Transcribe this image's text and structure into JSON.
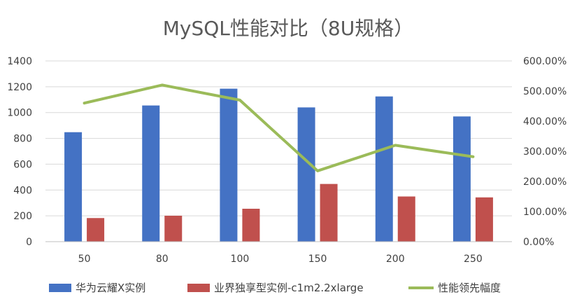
{
  "chart_data": {
    "type": "bar",
    "title": "MySQL性能对比（8U规格）",
    "categories": [
      "50",
      "80",
      "100",
      "150",
      "200",
      "250"
    ],
    "series": [
      {
        "name": "华为云耀X实例",
        "type": "bar",
        "axis": "left",
        "color": "#4472C4",
        "values": [
          848,
          1055,
          1185,
          1040,
          1125,
          970
        ]
      },
      {
        "name": "业界独享型实例-c1m2.2xlarge",
        "type": "bar",
        "axis": "left",
        "color": "#C0504D",
        "values": [
          183,
          201,
          255,
          447,
          350,
          343
        ]
      },
      {
        "name": "性能领先幅度",
        "type": "line",
        "axis": "right",
        "color": "#9BBB59",
        "values": [
          4.6,
          5.2,
          4.7,
          2.35,
          3.2,
          2.82
        ]
      }
    ],
    "y_left": {
      "ylim": [
        0,
        1400
      ],
      "ticks": [
        "0",
        "200",
        "400",
        "600",
        "800",
        "1000",
        "1200",
        "1400"
      ]
    },
    "y_right": {
      "ylim": [
        0,
        6
      ],
      "ticks": [
        "0.00%",
        "100.00%",
        "200.00%",
        "300.00%",
        "400.00%",
        "500.00%",
        "600.00%"
      ]
    },
    "grid": true,
    "legend_position": "bottom"
  }
}
